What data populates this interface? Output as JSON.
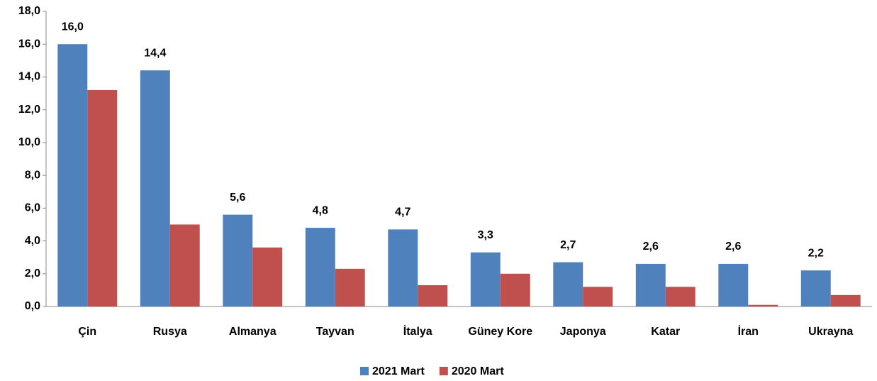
{
  "chart_data": {
    "type": "bar",
    "categories": [
      "Çin",
      "Rusya",
      "Almanya",
      "Tayvan",
      "İtalya",
      "Güney Kore",
      "Japonya",
      "Katar",
      "İran",
      "Ukrayna"
    ],
    "series": [
      {
        "name": "2021 Mart",
        "color": "#4f81bd",
        "values": [
          16.0,
          14.4,
          5.6,
          4.8,
          4.7,
          3.3,
          2.7,
          2.6,
          2.6,
          2.2
        ],
        "value_labels": [
          "16,0",
          "14,4",
          "5,6",
          "4,8",
          "4,7",
          "3,3",
          "2,7",
          "2,6",
          "2,6",
          "2,2"
        ]
      },
      {
        "name": "2020 Mart",
        "color": "#c0504d",
        "values": [
          13.2,
          5.0,
          3.6,
          2.3,
          1.3,
          2.0,
          1.2,
          1.2,
          0.1,
          0.7
        ]
      }
    ],
    "ylim": [
      0,
      18
    ],
    "yticks": [
      {
        "value": 0,
        "label": "0,0"
      },
      {
        "value": 2,
        "label": "2,0"
      },
      {
        "value": 4,
        "label": "4,0"
      },
      {
        "value": 6,
        "label": "6,0"
      },
      {
        "value": 8,
        "label": "8,0"
      },
      {
        "value": 10,
        "label": "10,0"
      },
      {
        "value": 12,
        "label": "12,0"
      },
      {
        "value": 14,
        "label": "14,0"
      },
      {
        "value": 16,
        "label": "16,0"
      },
      {
        "value": 18,
        "label": "18,0"
      }
    ],
    "legend": "bottom"
  }
}
